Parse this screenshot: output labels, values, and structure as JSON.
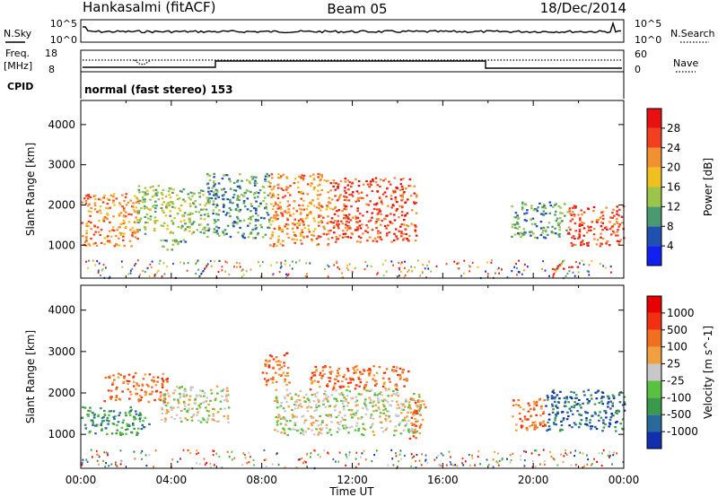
{
  "header": {
    "station": "Hankasalmi (fitACF)",
    "beam": "Beam 05",
    "date": "18/Dec/2014"
  },
  "strip_labels": {
    "nsky": "N.Sky",
    "nsearch": "N.Search",
    "freq": "Freq.",
    "freq_unit": "[MHz]",
    "nave": "Nave",
    "cpid": "CPID",
    "cpid_value": "normal (fast stereo) 153"
  },
  "strip_ticks": {
    "noise_left": [
      "10^5",
      "10^0"
    ],
    "noise_right": [
      "10^5",
      "10^0"
    ],
    "freq_left": [
      "18",
      "8"
    ],
    "nave_right": [
      "60",
      "0"
    ]
  },
  "chart_data": [
    {
      "type": "heatmap",
      "ylabel": "Slant Range [km]",
      "xlabel": "",
      "ylim": [
        180,
        4600
      ],
      "y_ticks": [
        "1000",
        "2000",
        "3000",
        "4000"
      ],
      "colorbar": {
        "label": "Power [dB]",
        "ticks": [
          "4",
          "8",
          "12",
          "16",
          "20",
          "24",
          "28"
        ],
        "colors": [
          "#1020f0",
          "#2050b0",
          "#4a9a70",
          "#9cc44a",
          "#f0c020",
          "#f09030",
          "#f04020",
          "#e81010"
        ]
      },
      "regions": [
        {
          "t0": 0.0,
          "t1": 2.5,
          "r0": 1000,
          "r1": 2300,
          "level": 5
        },
        {
          "t0": 2.5,
          "t1": 5.5,
          "r0": 1300,
          "r1": 2500,
          "level": 3
        },
        {
          "t0": 3.5,
          "t1": 4.6,
          "r0": 900,
          "r1": 1200,
          "level": 2
        },
        {
          "t0": 5.5,
          "t1": 8.3,
          "r0": 1200,
          "r1": 2800,
          "level": 2
        },
        {
          "t0": 8.3,
          "t1": 11.0,
          "r0": 1000,
          "r1": 2800,
          "level": 5
        },
        {
          "t0": 11.0,
          "t1": 14.8,
          "r0": 1100,
          "r1": 2700,
          "level": 6
        },
        {
          "t0": 19.0,
          "t1": 21.5,
          "r0": 1200,
          "r1": 2100,
          "level": 2
        },
        {
          "t0": 21.5,
          "t1": 24.0,
          "r0": 1000,
          "r1": 2000,
          "level": 6
        },
        {
          "t0": 20.8,
          "t1": 22.2,
          "r0": 400,
          "r1": 500,
          "level": 7
        }
      ]
    },
    {
      "type": "heatmap",
      "ylabel": "Slant Range [km]",
      "xlabel": "Time UT",
      "ylim": [
        180,
        4600
      ],
      "y_ticks": [
        "1000",
        "2000",
        "3000",
        "4000"
      ],
      "x_ticks": [
        "00:00",
        "04:00",
        "08:00",
        "12:00",
        "16:00",
        "20:00",
        "00:00"
      ],
      "xlim_hours": [
        0,
        24
      ],
      "colorbar": {
        "label": "Velocity [m s^-1]",
        "ticks": [
          "1000",
          "500",
          "100",
          "25",
          "-25",
          "-100",
          "-500",
          "-1000"
        ],
        "colors": [
          "#1030b0",
          "#2a6a98",
          "#3a9a4a",
          "#5ac040",
          "#c8c8c8",
          "#f0a040",
          "#f07020",
          "#f03010",
          "#e80000"
        ]
      },
      "regions": [
        {
          "t0": 0.0,
          "t1": 3.0,
          "r0": 1000,
          "r1": 1700,
          "level": 2
        },
        {
          "t0": 1.0,
          "t1": 3.8,
          "r0": 1800,
          "r1": 2500,
          "level": 6
        },
        {
          "t0": 3.5,
          "t1": 6.5,
          "r0": 1300,
          "r1": 2200,
          "level": 4
        },
        {
          "t0": 8.0,
          "t1": 9.2,
          "r0": 2200,
          "r1": 3000,
          "level": 6
        },
        {
          "t0": 8.5,
          "t1": 15.0,
          "r0": 1000,
          "r1": 2100,
          "level": 4
        },
        {
          "t0": 10.0,
          "t1": 14.5,
          "r0": 2100,
          "r1": 2700,
          "level": 6
        },
        {
          "t0": 14.5,
          "t1": 15.2,
          "r0": 900,
          "r1": 1900,
          "level": 6
        },
        {
          "t0": 19.0,
          "t1": 20.5,
          "r0": 1100,
          "r1": 1900,
          "level": 6
        },
        {
          "t0": 20.5,
          "t1": 24.0,
          "r0": 1100,
          "r1": 2100,
          "level": 1
        }
      ]
    }
  ]
}
